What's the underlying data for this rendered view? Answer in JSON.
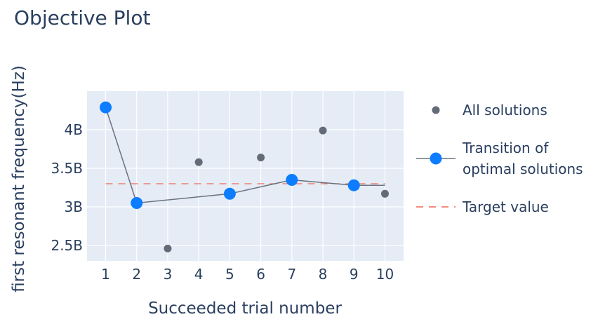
{
  "chart_data": {
    "type": "scatter",
    "title": "Objective Plot",
    "xlabel": "Succeeded trial number",
    "ylabel": "first resonant frequency(Hz)",
    "x_ticks": [
      1,
      2,
      3,
      4,
      5,
      6,
      7,
      8,
      9,
      10
    ],
    "x_tick_labels": [
      "1",
      "2",
      "3",
      "4",
      "5",
      "6",
      "7",
      "8",
      "9",
      "10"
    ],
    "y_ticks": [
      2.5,
      3,
      3.5,
      4
    ],
    "y_tick_labels": [
      "2.5B",
      "3B",
      "3.5B",
      "4B"
    ],
    "xlim": [
      0.4,
      10.6
    ],
    "ylim": [
      2.3,
      4.5
    ],
    "grid": true,
    "legend_position": "right",
    "series": [
      {
        "name": "All solutions",
        "mode": "markers",
        "color": "#636b78",
        "x": [
          1,
          2,
          3,
          4,
          5,
          6,
          7,
          8,
          9,
          10
        ],
        "y": [
          4.29,
          3.05,
          2.46,
          3.58,
          3.17,
          3.64,
          3.35,
          3.99,
          3.28,
          3.17
        ]
      },
      {
        "name": "Transition of optimal solutions",
        "legend_lines": [
          "Transition of",
          "optimal solutions"
        ],
        "mode": "lines+markers",
        "color": "#0d7dff",
        "line_color": "#6b7280",
        "x": [
          1,
          2,
          5,
          7,
          9
        ],
        "y": [
          4.29,
          3.05,
          3.17,
          3.35,
          3.28
        ],
        "line_x": [
          1,
          2,
          5,
          7,
          9,
          10
        ],
        "line_y": [
          4.29,
          3.05,
          3.17,
          3.35,
          3.28,
          3.28
        ]
      },
      {
        "name": "Target value",
        "mode": "dashed-line",
        "color": "#ef553b",
        "x": [
          1,
          10
        ],
        "y": [
          3.3,
          3.3
        ]
      }
    ]
  },
  "colors": {
    "plot_background": "#e5ecf6",
    "grid": "#ffffff",
    "text": "#2a3f5f"
  }
}
